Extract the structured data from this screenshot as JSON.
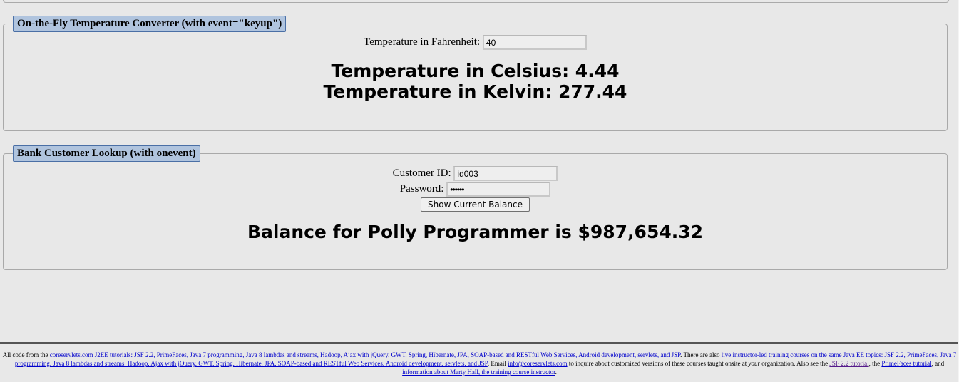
{
  "temp": {
    "legend": "On-the-Fly Temperature Converter (with event=\"keyup\")",
    "fahrenheit_label": "Temperature in Fahrenheit:",
    "fahrenheit_value": "40",
    "celsius_text": "Temperature in Celsius: 4.44",
    "kelvin_text": "Temperature in Kelvin: 277.44"
  },
  "bank": {
    "legend": "Bank Customer Lookup (with onevent)",
    "customer_id_label": "Customer ID:",
    "customer_id_value": "id003",
    "password_label": "Password:",
    "password_value": "••••••",
    "button_label": "Show Current Balance",
    "balance_text": "Balance for Polly Programmer is $987,654.32"
  },
  "footer": {
    "t1": "All code from the ",
    "l1": "coreservlets.com J2EE tutorials: JSF 2.2, PrimeFaces, Java 7 programming, Java 8 lambdas and streams, Hadoop, Ajax with jQuery, GWT, Spring, Hibernate, JPA, SOAP-based and RESTful Web Services, Android development, servlets, and JSP",
    "t2": ". There are also ",
    "l2": "live instructor-led training courses on the same Java EE topics: JSF 2.2, PrimeFaces, Java 7 programming, Java 8 lambdas and streams, Hadoop, Ajax with jQuery, GWT, Spring, Hibernate, JPA, SOAP-based and RESTful Web Services, Android development, servlets, and JSP",
    "t3": ". Email ",
    "l3": "info@coreservlets.com",
    "t4": " to inquire about customized versions of these courses taught onsite at ",
    "t4_em": "your",
    "t5": " organization. Also see the ",
    "l4": "JSF 2.2 tutorial",
    "t6": ", the ",
    "l5": "PrimeFaces tutorial",
    "t7": ", and ",
    "l6": "information about Marty Hall, the training course instructor",
    "t8": "."
  }
}
